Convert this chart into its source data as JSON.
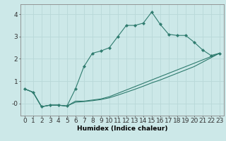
{
  "xlabel": "Humidex (Indice chaleur)",
  "background_color": "#cce8e8",
  "grid_color": "#b8d8d8",
  "line_color": "#2e7b6e",
  "x_values": [
    0,
    1,
    2,
    3,
    4,
    5,
    6,
    7,
    8,
    9,
    10,
    11,
    12,
    13,
    14,
    15,
    16,
    17,
    18,
    19,
    20,
    21,
    22,
    23
  ],
  "line1_y": [
    0.65,
    0.5,
    -0.15,
    -0.08,
    -0.08,
    -0.12,
    0.65,
    1.65,
    2.25,
    2.35,
    2.5,
    3.0,
    3.5,
    3.5,
    3.6,
    4.1,
    3.55,
    3.1,
    3.05,
    3.05,
    2.75,
    2.4,
    2.15,
    2.25
  ],
  "line2_y": [
    0.65,
    0.5,
    -0.15,
    -0.08,
    -0.08,
    -0.12,
    0.1,
    0.1,
    0.15,
    0.2,
    0.3,
    0.45,
    0.6,
    0.75,
    0.9,
    1.05,
    1.2,
    1.35,
    1.5,
    1.65,
    1.8,
    1.95,
    2.1,
    2.25
  ],
  "line3_y": [
    0.65,
    0.5,
    -0.15,
    -0.08,
    -0.08,
    -0.12,
    0.05,
    0.08,
    0.12,
    0.17,
    0.25,
    0.37,
    0.5,
    0.63,
    0.77,
    0.92,
    1.05,
    1.2,
    1.35,
    1.5,
    1.65,
    1.85,
    2.05,
    2.25
  ],
  "ylim": [
    -0.55,
    4.45
  ],
  "xlim": [
    -0.5,
    23.5
  ],
  "yticks": [
    0,
    1,
    2,
    3,
    4
  ],
  "ytick_labels": [
    "-0",
    "1",
    "2",
    "3",
    "4"
  ]
}
